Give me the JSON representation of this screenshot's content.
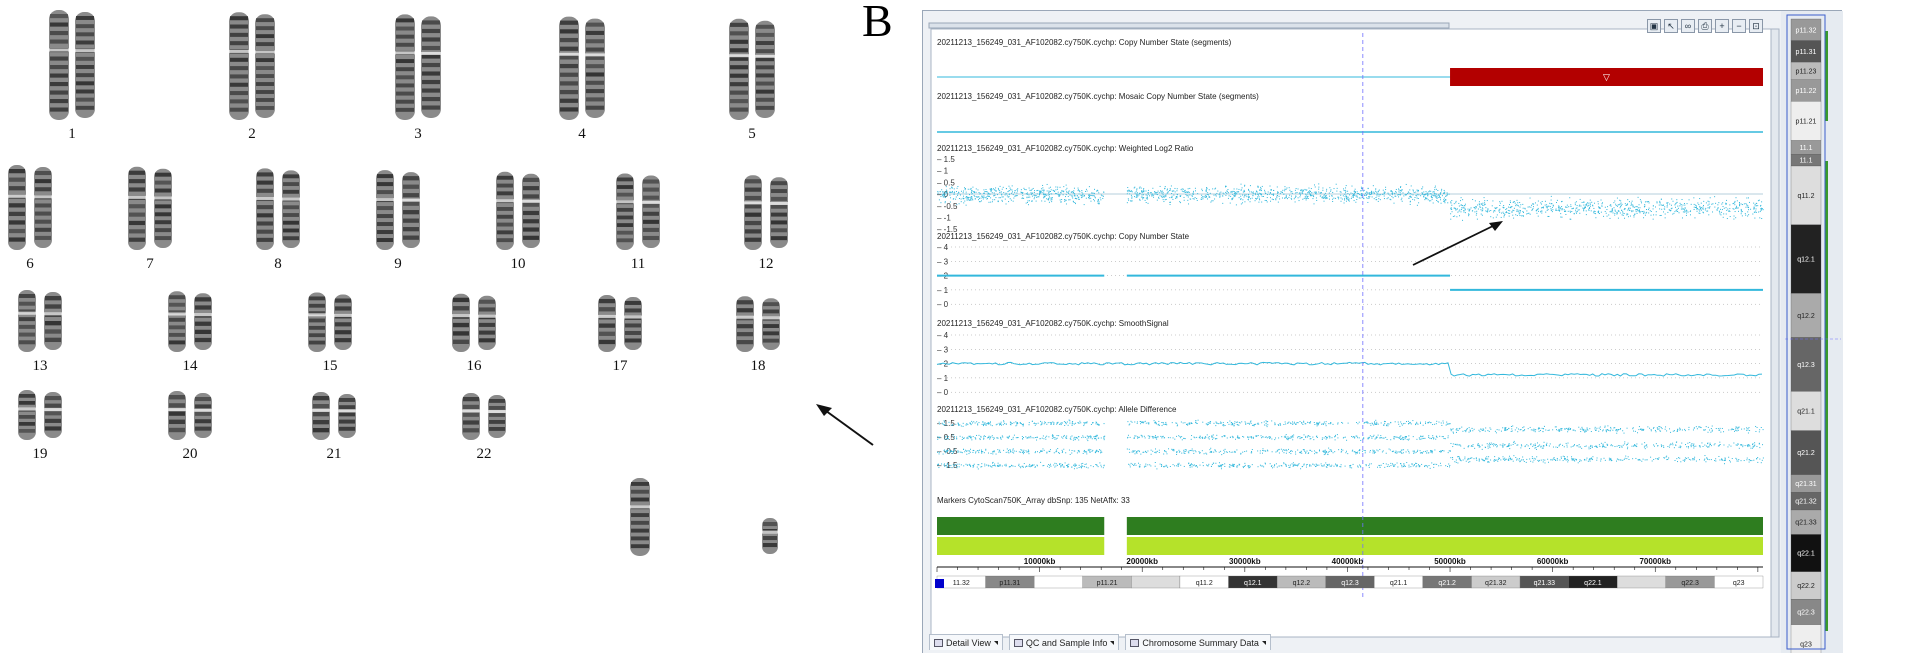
{
  "panel_label": "B",
  "karyotype": {
    "rows": [
      [
        {
          "n": "1"
        },
        {
          "n": "2"
        },
        {
          "n": "3"
        },
        {
          "n": "4"
        },
        {
          "n": "5"
        }
      ],
      [
        {
          "n": "6"
        },
        {
          "n": "7"
        },
        {
          "n": "8"
        },
        {
          "n": "9"
        },
        {
          "n": "10"
        },
        {
          "n": "11"
        },
        {
          "n": "12"
        }
      ],
      [
        {
          "n": "13"
        },
        {
          "n": "14"
        },
        {
          "n": "15"
        },
        {
          "n": "16"
        },
        {
          "n": "17"
        },
        {
          "n": "18"
        }
      ],
      [
        {
          "n": "19"
        },
        {
          "n": "20"
        },
        {
          "n": "21"
        },
        {
          "n": "22"
        }
      ]
    ]
  },
  "tracks": {
    "cn_segments": "20211213_156249_031_AF102082.cy750K.cychp: Copy Number State (segments)",
    "mosaic": "20211213_156249_031_AF102082.cy750K.cychp: Mosaic Copy Number State (segments)",
    "log2": "20211213_156249_031_AF102082.cy750K.cychp: Weighted Log2 Ratio",
    "cn_state": "20211213_156249_031_AF102082.cy750K.cychp: Copy Number State",
    "smooth": "20211213_156249_031_AF102082.cy750K.cychp: SmoothSignal",
    "allele": "20211213_156249_031_AF102082.cy750K.cychp: Allele Difference",
    "markers": "Markers CytoScan750K_Array dbSnp: 135 NetAffx: 33"
  },
  "log2_ticks": [
    "1.5",
    "1",
    "0.5",
    "0",
    "-0.5",
    "-1",
    "-1.5"
  ],
  "cn_ticks": [
    "4",
    "3",
    "2",
    "1",
    "0"
  ],
  "smooth_ticks": [
    "4",
    "3",
    "2",
    "1",
    "0"
  ],
  "allele_ticks": [
    "1.5",
    "0.5",
    "-0.5",
    "-1.5"
  ],
  "axis_labels": [
    "10000kb",
    "20000kb",
    "30000kb",
    "40000kb",
    "50000kb",
    "60000kb",
    "70000kb"
  ],
  "bands_bottom": [
    "11.32",
    "p11.31",
    "",
    "p11.21",
    "",
    "q11.2",
    "q12.1",
    "q12.2",
    "q12.3",
    "q21.1",
    "q21.2",
    "q21.32",
    "q21.33",
    "q22.1",
    "",
    "q22.3",
    "q23"
  ],
  "ideogram_bands": [
    "p11.32",
    "p11.31",
    "p11.23",
    "p11.22",
    "p11.21",
    "11.1",
    "11.1",
    "q11.2",
    "q12.1",
    "q12.2",
    "q12.3",
    "q21.1",
    "q21.2",
    "q21.31",
    "q21.32",
    "q21.33",
    "q22.1",
    "q22.2",
    "q22.3",
    "q23"
  ],
  "tabs": [
    "Detail View",
    "QC and Sample Info",
    "Chromosome Summary Data"
  ],
  "colors": {
    "cyan": "#33b8dc",
    "red": "#b30000",
    "dark_green": "#2e7d1f",
    "light_green": "#b5e22a"
  }
}
